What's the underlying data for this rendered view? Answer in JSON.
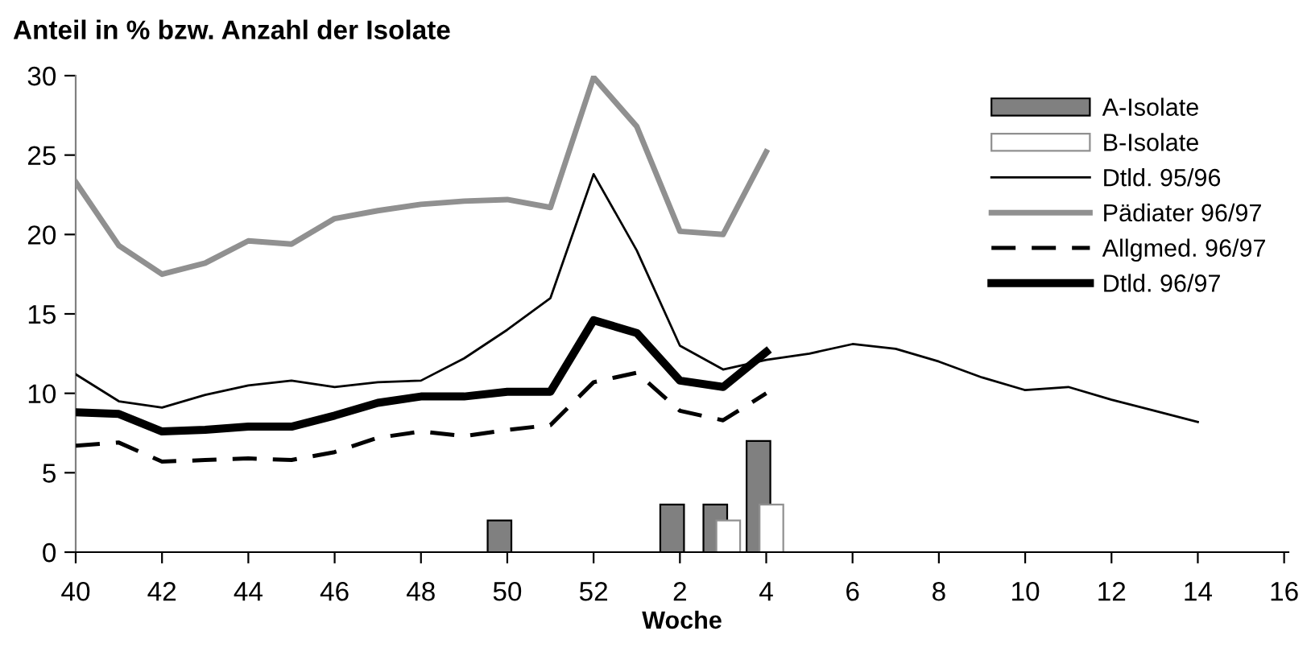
{
  "chart_data": {
    "type": "line",
    "ylabel": "Anteil in % bzw. Anzahl der Isolate",
    "xlabel": "Woche",
    "categories": [
      "40",
      null,
      "42",
      null,
      "44",
      null,
      "46",
      null,
      "48",
      null,
      "50",
      null,
      "52",
      null,
      "2",
      null,
      "4",
      null,
      "6",
      null,
      "8",
      null,
      "10",
      null,
      "12",
      null,
      "14",
      null,
      "16"
    ],
    "ylim": [
      0,
      30
    ],
    "yticks": [
      0,
      5,
      10,
      15,
      20,
      25,
      30
    ],
    "grid": false,
    "legend": "top right",
    "marker": "none",
    "series": [
      {
        "name": "A-Isolate",
        "type": "bar",
        "color": "#808080",
        "values": [
          null,
          null,
          null,
          null,
          null,
          null,
          null,
          null,
          null,
          null,
          2,
          null,
          null,
          null,
          3,
          3,
          7,
          null,
          null,
          null,
          null,
          null,
          null,
          null,
          null,
          null,
          null,
          null,
          null
        ]
      },
      {
        "name": "B-Isolate",
        "type": "bar",
        "color": "#ffffff",
        "values": [
          null,
          null,
          null,
          null,
          null,
          null,
          null,
          null,
          null,
          null,
          null,
          null,
          null,
          null,
          null,
          2,
          3,
          null,
          null,
          null,
          null,
          null,
          null,
          null,
          null,
          null,
          null,
          null,
          null
        ]
      },
      {
        "name": "Dtld. 95/96",
        "color": "#000000",
        "line_style": "solid",
        "values": [
          11.2,
          9.5,
          9.1,
          9.9,
          10.5,
          10.8,
          10.4,
          10.7,
          10.8,
          12.2,
          14.0,
          16.0,
          23.8,
          19.0,
          13.0,
          11.5,
          12.1,
          12.5,
          13.1,
          12.8,
          12.0,
          11.0,
          10.2,
          10.4,
          9.6,
          8.9,
          8.2,
          null,
          null
        ]
      },
      {
        "name": "Pädiater 96/97",
        "color": "#909090",
        "line_style": "solid",
        "values": [
          23.3,
          19.3,
          17.5,
          18.2,
          19.6,
          19.4,
          21.0,
          21.5,
          21.9,
          22.1,
          22.2,
          21.7,
          29.9,
          26.8,
          20.2,
          20.0,
          25.2,
          null,
          null,
          null,
          null,
          null,
          null,
          null,
          null,
          null,
          null,
          null,
          null
        ]
      },
      {
        "name": "Allgmed. 96/97",
        "color": "#000000",
        "line_style": "dashed",
        "values": [
          6.7,
          6.9,
          5.7,
          5.8,
          5.9,
          5.8,
          6.3,
          7.2,
          7.6,
          7.3,
          7.7,
          8.0,
          10.7,
          11.3,
          8.9,
          8.3,
          10.0,
          null,
          null,
          null,
          null,
          null,
          null,
          null,
          null,
          null,
          null,
          null,
          null
        ]
      },
      {
        "name": "Dtld. 96/97",
        "color": "#000000",
        "line_style": "solid",
        "values": [
          8.8,
          8.7,
          7.6,
          7.7,
          7.9,
          7.9,
          8.6,
          9.4,
          9.8,
          9.8,
          10.1,
          10.1,
          14.6,
          13.8,
          10.8,
          10.4,
          12.6,
          null,
          null,
          null,
          null,
          null,
          null,
          null,
          null,
          null,
          null,
          null,
          null
        ]
      }
    ]
  }
}
